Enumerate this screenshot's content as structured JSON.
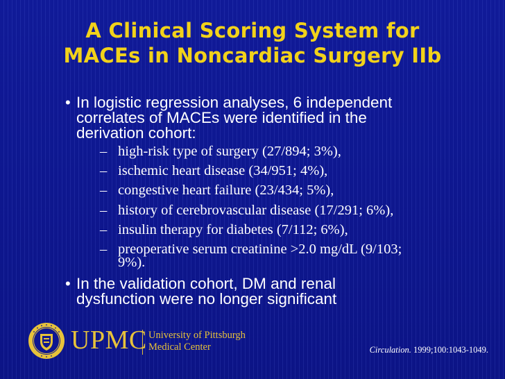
{
  "slide": {
    "title_lines": [
      "A Clinical Scoring System for",
      "MACEs in Noncardiac Surgery IIb"
    ],
    "bullet_1_lines": [
      "In logistic regression analyses, 6 independent",
      "correlates of MACEs were identified in the",
      "derivation cohort:"
    ],
    "sub_items": [
      "high-risk type of surgery (27/894; 3%),",
      "ischemic heart disease (34/951; 4%),",
      "congestive heart failure (23/434; 5%),",
      "history of cerebrovascular disease (17/291; 6%),",
      "insulin therapy for diabetes (7/112; 6%),",
      "preoperative serum creatinine >2.0 mg/dL (9/103;",
      "9%)."
    ],
    "bullet_2_lines": [
      "In the validation cohort, DM and renal",
      "dysfunction were no longer significant"
    ],
    "bullet_symbol": "•",
    "dash_symbol": "–"
  },
  "footer": {
    "upmc": "UPMC",
    "university_line_1": "University of Pittsburgh",
    "university_line_2": "Medical Center",
    "citation_journal": "Circulation.",
    "citation_ref": " 1999;100:1043-1049.",
    "seal_text": "UNIVERSITY OF PITTSBURGH"
  },
  "colors": {
    "title": "#f2d21a",
    "text": "#ffffff",
    "logo": "#e7c23a",
    "background": "#0e1690"
  }
}
